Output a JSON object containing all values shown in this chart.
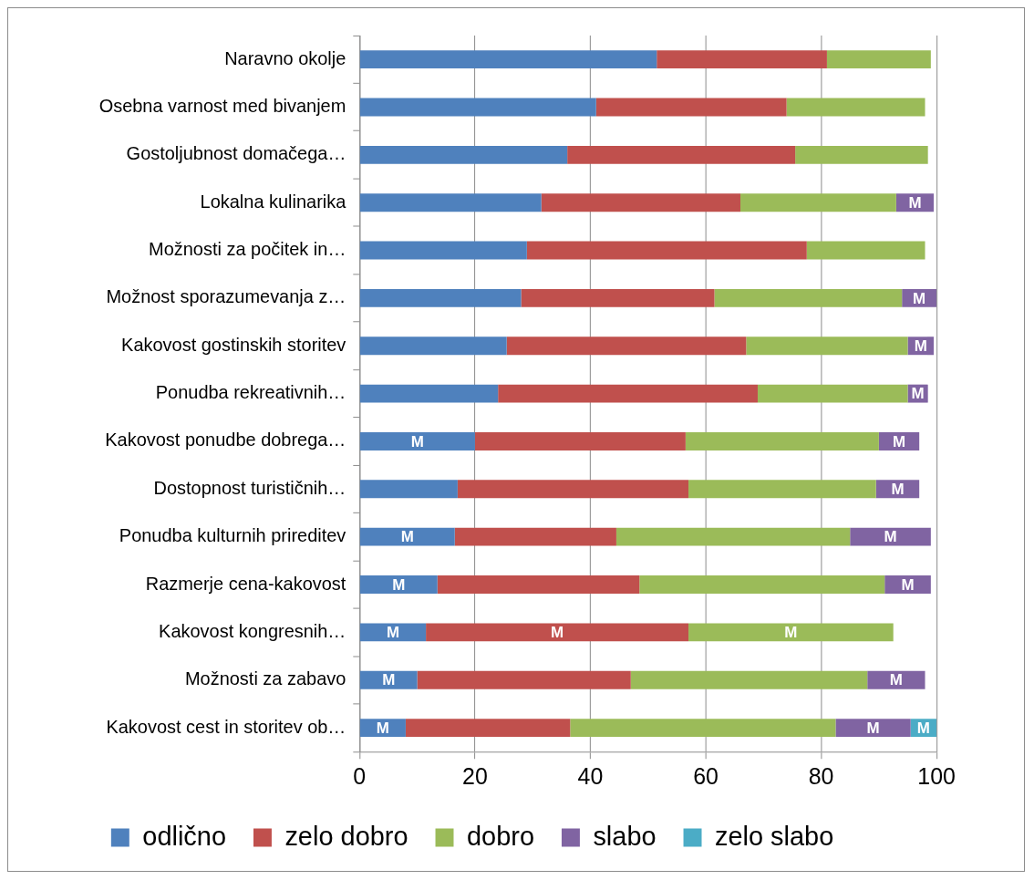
{
  "chart_data": {
    "type": "bar",
    "orientation": "horizontal",
    "stacked": true,
    "categories": [
      "Naravno okolje",
      "Osebna varnost med bivanjem",
      "Gostoljubnost domačega…",
      "Lokalna kulinarika",
      "Možnosti za počitek in…",
      "Možnost sporazumevanja z…",
      "Kakovost gostinskih storitev",
      "Ponudba rekreativnih…",
      "Kakovost ponudbe dobrega…",
      "Dostopnost turističnih…",
      "Ponudba kulturnih prireditev",
      "Razmerje cena-kakovost",
      "Kakovost kongresnih…",
      "Možnosti za zabavo",
      "Kakovost cest in storitev ob…"
    ],
    "series": [
      {
        "name": "odlično",
        "color": "#4f81bd",
        "values": [
          51.5,
          41,
          36,
          31.5,
          29,
          28,
          25.5,
          24,
          20,
          17,
          16.5,
          13.5,
          11.5,
          10,
          8
        ],
        "value_labels": [
          null,
          null,
          null,
          null,
          null,
          null,
          null,
          null,
          "M",
          null,
          "M",
          "M",
          "M",
          "M",
          "M"
        ]
      },
      {
        "name": "zelo dobro",
        "color": "#c0504d",
        "values": [
          29.5,
          33,
          39.5,
          34.5,
          48.5,
          33.5,
          41.5,
          45,
          36.5,
          40,
          28,
          35,
          45.5,
          37,
          28.5
        ],
        "value_labels": [
          null,
          null,
          null,
          null,
          null,
          null,
          null,
          null,
          null,
          null,
          null,
          null,
          "M",
          null,
          null
        ]
      },
      {
        "name": "dobro",
        "color": "#9bbb59",
        "values": [
          18,
          24,
          23,
          27,
          20.5,
          32.5,
          28,
          26,
          33.5,
          32.5,
          40.5,
          42.5,
          35.5,
          41,
          46
        ],
        "value_labels": [
          null,
          null,
          null,
          null,
          null,
          null,
          null,
          null,
          null,
          null,
          null,
          null,
          "M",
          null,
          null
        ]
      },
      {
        "name": "slabo",
        "color": "#8064a2",
        "values": [
          null,
          null,
          null,
          6.5,
          null,
          6,
          4.5,
          3.5,
          7,
          7.5,
          14,
          8,
          null,
          10,
          13
        ],
        "value_labels": [
          null,
          null,
          null,
          "M",
          null,
          "M",
          "M",
          "M",
          "M",
          "M",
          "M",
          "M",
          null,
          "M",
          "M"
        ]
      },
      {
        "name": "zelo slabo",
        "color": "#4bacc6",
        "values": [
          null,
          null,
          null,
          null,
          null,
          null,
          null,
          null,
          null,
          null,
          null,
          null,
          null,
          null,
          4.5
        ],
        "value_labels": [
          null,
          null,
          null,
          null,
          null,
          null,
          null,
          null,
          null,
          null,
          null,
          null,
          null,
          null,
          "M"
        ]
      }
    ],
    "xlim": [
      0,
      100
    ],
    "xticks": [
      0,
      20,
      40,
      60,
      80,
      100
    ],
    "grid": "x",
    "legend": "bottom"
  }
}
